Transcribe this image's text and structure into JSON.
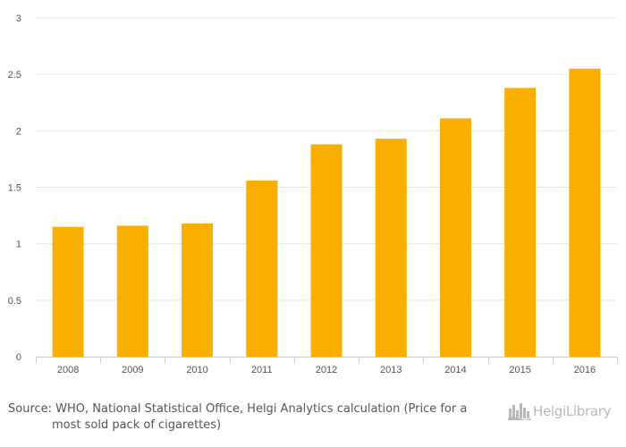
{
  "chart_data": {
    "type": "bar",
    "categories": [
      "2008",
      "2009",
      "2010",
      "2011",
      "2012",
      "2013",
      "2014",
      "2015",
      "2016"
    ],
    "values": [
      1.15,
      1.16,
      1.18,
      1.56,
      1.88,
      1.93,
      2.11,
      2.38,
      2.55
    ],
    "title": "",
    "xlabel": "",
    "ylabel": "",
    "ylim": [
      0,
      3
    ],
    "yticks": [
      "0",
      "0.5",
      "1",
      "1.5",
      "2",
      "2.5",
      "3"
    ],
    "grid": true,
    "bar_color": "#f9ae00"
  },
  "source": {
    "line1": "Source: WHO, National Statistical Office, Helgi Analytics calculation (Price for a",
    "line2": "most sold pack of cigarettes)"
  },
  "logo": {
    "text": "HelgiLibrary",
    "icon": "city-skyline-icon",
    "color": "#b8b8b8"
  },
  "colors": {
    "grid": "#e6e6e6",
    "axis": "#cccccc",
    "text": "#555555"
  }
}
